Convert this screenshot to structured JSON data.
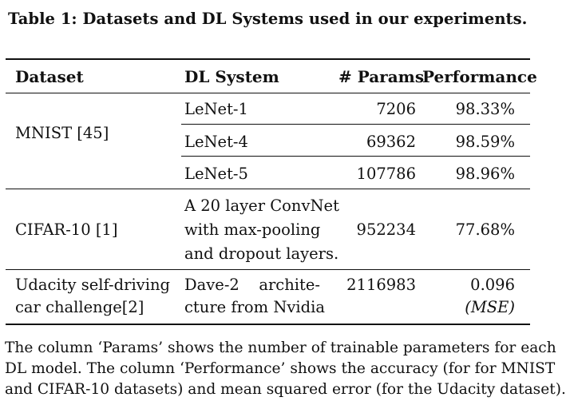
{
  "caption": "Table 1: Datasets and DL Systems used in our experiments.",
  "headers": {
    "dataset": "Dataset",
    "system": "DL System",
    "params": "# Params",
    "performance": "Performance"
  },
  "rows": [
    {
      "dataset": [
        "MNIST [45]"
      ],
      "systems": [
        {
          "name": [
            "LeNet-1"
          ],
          "params": "7206",
          "performance": [
            "98.33%"
          ]
        },
        {
          "name": [
            "LeNet-4"
          ],
          "params": "69362",
          "performance": [
            "98.59%"
          ]
        },
        {
          "name": [
            "LeNet-5"
          ],
          "params": "107786",
          "performance": [
            "98.96%"
          ]
        }
      ]
    },
    {
      "dataset": [
        "CIFAR-10 [1]"
      ],
      "systems": [
        {
          "name": [
            "A 20 layer ConvNet",
            "with max-pooling",
            "and dropout layers."
          ],
          "params": "952234",
          "performance": [
            "77.68%"
          ]
        }
      ]
    },
    {
      "dataset": [
        "Udacity self-driving",
        "car challenge[2]"
      ],
      "systems": [
        {
          "name": [
            "Dave-2",
            "archite-",
            "cture from Nvidia"
          ],
          "params": "2116983",
          "performance": [
            "0.096",
            "(MSE)"
          ]
        }
      ]
    }
  ],
  "footnote": [
    "The column ‘Params’ shows the number of trainable parameters for each",
    "DL model. The column ‘Performance’ shows the accuracy (for for MNIST",
    "and CIFAR-10 datasets) and mean squared error (for the Udacity dataset)."
  ]
}
